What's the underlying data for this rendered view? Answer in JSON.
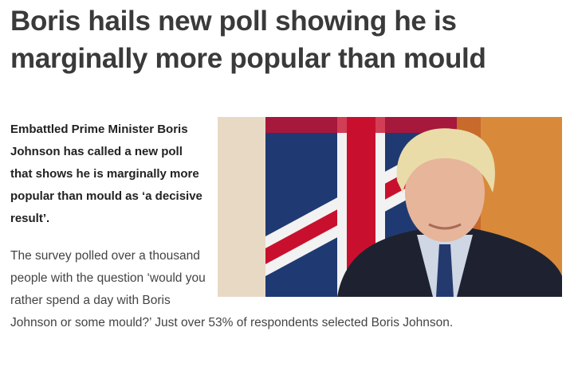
{
  "header": {
    "title": "Boris hails new poll showing he is marginally more popular than mould"
  },
  "article": {
    "intro": "Embattled Prime Minister Boris Johnson has called a new poll that shows he is marginally more popular than mould as ‘a decisive result’.",
    "body": "The survey polled over a thousand people with the question ‘would you rather spend a day with Boris Johnson or some mould?’ Just over 53% of respondents selected Boris Johnson."
  }
}
